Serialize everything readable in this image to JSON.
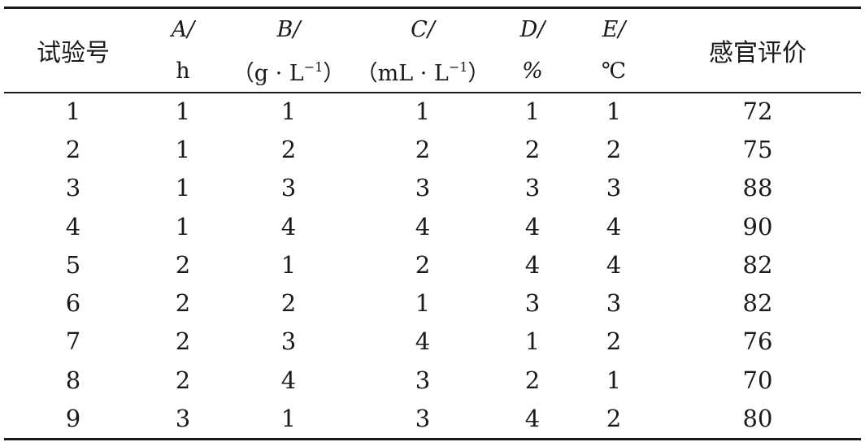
{
  "header": {
    "trial_no": "试验号",
    "sensory": "感官评价",
    "cols": [
      {
        "name": "A/",
        "unit": "h"
      },
      {
        "name": "B/",
        "unit_pre": "（g · L",
        "unit_sup": "−1",
        "unit_post": "）"
      },
      {
        "name": "C/",
        "unit_pre": "（mL · L",
        "unit_sup": "−1",
        "unit_post": "）"
      },
      {
        "name": "D/",
        "unit": "%"
      },
      {
        "name": "E/",
        "unit": "℃"
      }
    ]
  },
  "rows": [
    [
      "1",
      "1",
      "1",
      "1",
      "1",
      "1",
      "72"
    ],
    [
      "2",
      "1",
      "2",
      "2",
      "2",
      "2",
      "75"
    ],
    [
      "3",
      "1",
      "3",
      "3",
      "3",
      "3",
      "88"
    ],
    [
      "4",
      "1",
      "4",
      "4",
      "4",
      "4",
      "90"
    ],
    [
      "5",
      "2",
      "1",
      "2",
      "4",
      "4",
      "82"
    ],
    [
      "6",
      "2",
      "2",
      "1",
      "3",
      "3",
      "82"
    ],
    [
      "7",
      "2",
      "3",
      "4",
      "1",
      "2",
      "76"
    ],
    [
      "8",
      "2",
      "4",
      "3",
      "2",
      "1",
      "70"
    ],
    [
      "9",
      "3",
      "1",
      "3",
      "4",
      "2",
      "80"
    ]
  ]
}
